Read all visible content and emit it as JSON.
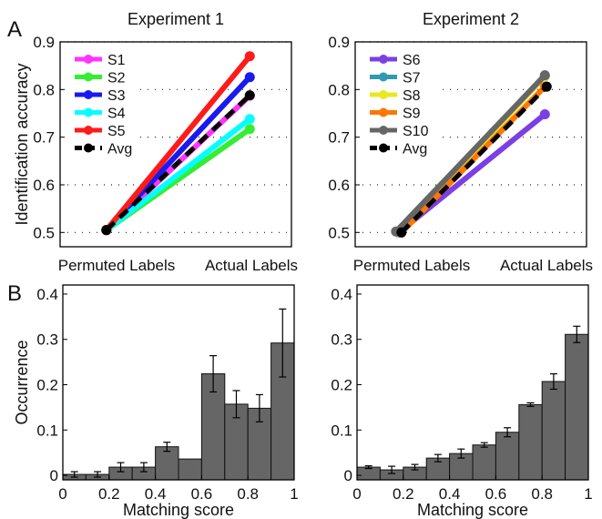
{
  "panel_labels": {
    "a": "A",
    "b": "B"
  },
  "chart_data": [
    {
      "type": "line",
      "title": "Experiment 1",
      "ylabel": "Identification accuracy",
      "categories": [
        "Permuted Labels",
        "Actual Labels"
      ],
      "ylim": [
        0.47,
        0.9
      ],
      "yticks": [
        "0.5",
        "0.6",
        "0.7",
        "0.8",
        "0.9"
      ],
      "grid": "dotted-horizontal",
      "legend": "top-left",
      "series": [
        {
          "name": "S1",
          "color": "#ff33ff",
          "values": [
            0.505,
            0.787
          ]
        },
        {
          "name": "S2",
          "color": "#33ee33",
          "values": [
            0.505,
            0.717
          ]
        },
        {
          "name": "S3",
          "color": "#1a1aee",
          "values": [
            0.505,
            0.826
          ]
        },
        {
          "name": "S4",
          "color": "#00ffff",
          "values": [
            0.505,
            0.738
          ]
        },
        {
          "name": "S5",
          "color": "#ff1a1a",
          "values": [
            0.505,
            0.87
          ]
        },
        {
          "name": "Avg",
          "color": "#000000",
          "dashed": true,
          "values": [
            0.505,
            0.788
          ]
        }
      ]
    },
    {
      "type": "line",
      "title": "Experiment 2",
      "categories": [
        "Permuted Labels",
        "Actual Labels"
      ],
      "ylim": [
        0.47,
        0.9
      ],
      "yticks": [
        "0.5",
        "0.6",
        "0.7",
        "0.8",
        "0.9"
      ],
      "grid": "dotted-horizontal",
      "legend": "top-left",
      "series": [
        {
          "name": "S6",
          "color": "#7b3fe4",
          "values": [
            0.5,
            0.748
          ]
        },
        {
          "name": "S7",
          "color": "#2e9bb0",
          "values": [
            0.5,
            0.828
          ]
        },
        {
          "name": "S8",
          "color": "#e8e820",
          "values": [
            0.5,
            0.828
          ]
        },
        {
          "name": "S9",
          "color": "#ff7700",
          "values": [
            0.5,
            0.806
          ]
        },
        {
          "name": "S10",
          "color": "#666666",
          "values": [
            0.502,
            0.83
          ]
        },
        {
          "name": "Avg",
          "color": "#000000",
          "dashed": true,
          "values": [
            0.5,
            0.806
          ]
        }
      ]
    },
    {
      "type": "bar",
      "xlabel": "Matching score",
      "ylabel": "Occurrence",
      "xlim": [
        0,
        1
      ],
      "ylim": [
        -0.01,
        0.42
      ],
      "xticks": [
        "0",
        "0.2",
        "0.4",
        "0.6",
        "0.8",
        "1"
      ],
      "yticks": [
        "0",
        "0.1",
        "0.2",
        "0.3",
        "0.4"
      ],
      "bar_color": "#666666",
      "bin_width": 0.1,
      "x": [
        0.05,
        0.15,
        0.25,
        0.35,
        0.45,
        0.55,
        0.65,
        0.75,
        0.85,
        0.95
      ],
      "values": [
        0.002,
        0.002,
        0.018,
        0.018,
        0.063,
        0.036,
        0.224,
        0.157,
        0.148,
        0.292
      ],
      "errors": [
        0.006,
        0.006,
        0.01,
        0.01,
        0.01,
        0.0,
        0.04,
        0.03,
        0.03,
        0.075
      ]
    },
    {
      "type": "bar",
      "xlabel": "Matching score",
      "xlim": [
        0,
        1
      ],
      "ylim": [
        -0.01,
        0.42
      ],
      "xticks": [
        "0",
        "0.2",
        "0.4",
        "0.6",
        "0.8",
        "1"
      ],
      "yticks": [
        "0",
        "0.1",
        "0.2",
        "0.3",
        "0.4"
      ],
      "bar_color": "#666666",
      "bin_width": 0.1,
      "x": [
        0.05,
        0.15,
        0.25,
        0.35,
        0.45,
        0.55,
        0.65,
        0.75,
        0.85,
        0.95
      ],
      "values": [
        0.018,
        0.012,
        0.018,
        0.038,
        0.048,
        0.067,
        0.095,
        0.156,
        0.207,
        0.311
      ],
      "errors": [
        0.003,
        0.008,
        0.006,
        0.008,
        0.01,
        0.005,
        0.01,
        0.004,
        0.017,
        0.018
      ]
    }
  ]
}
